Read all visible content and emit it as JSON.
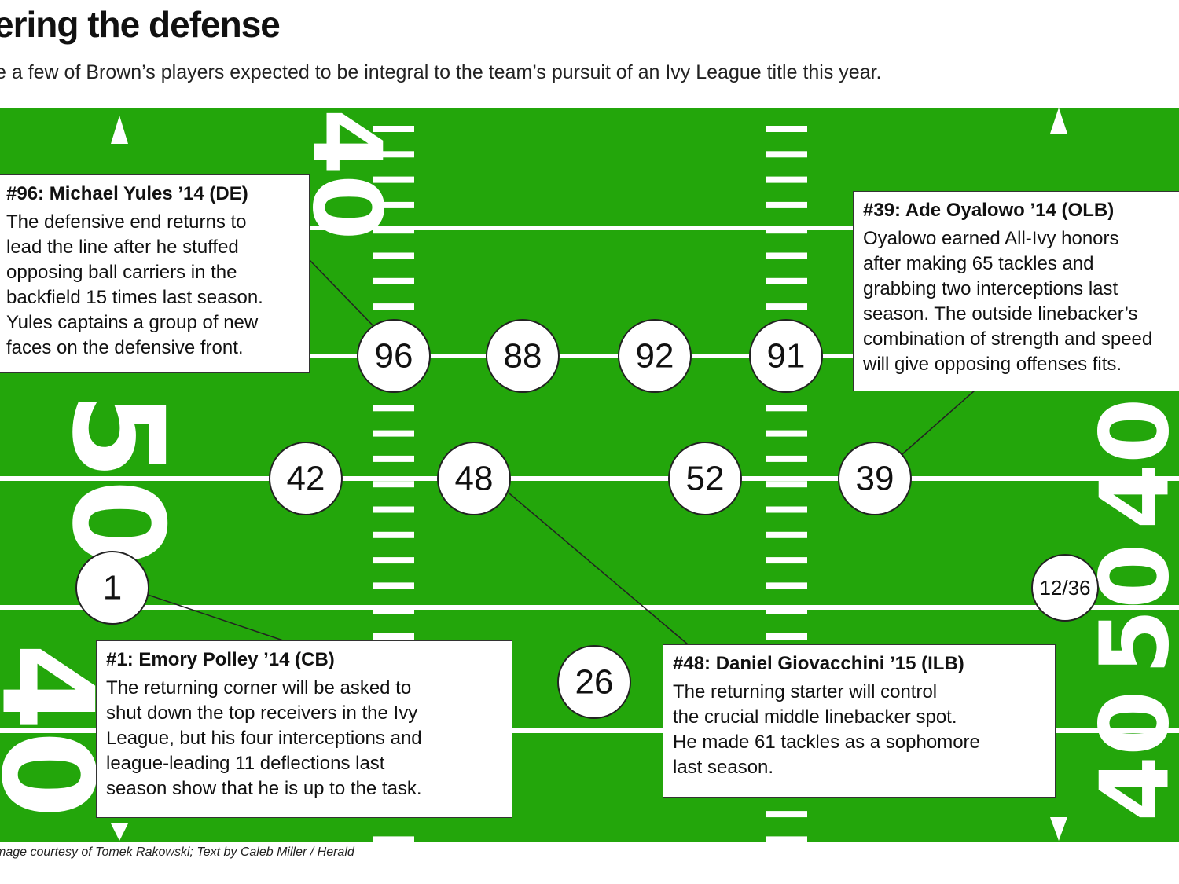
{
  "header": {
    "title": "ering the defense",
    "subtitle": "e a few of Brown’s players expected to be integral to the team’s pursuit of an Ivy League title this year."
  },
  "colors": {
    "field": "#23a60b",
    "lines": "#ffffff",
    "box_border": "#333333"
  },
  "field_numbers": {
    "left_mid": "50",
    "left_bottom": "40",
    "left_top": "40",
    "right_mid": "50",
    "right_bottom": "40",
    "right_top": "40"
  },
  "players": [
    {
      "number": "96"
    },
    {
      "number": "88"
    },
    {
      "number": "92"
    },
    {
      "number": "91"
    },
    {
      "number": "42"
    },
    {
      "number": "48"
    },
    {
      "number": "52"
    },
    {
      "number": "39"
    },
    {
      "number": "1"
    },
    {
      "number": "26"
    },
    {
      "number": "12/36"
    }
  ],
  "callouts": {
    "yules": {
      "heading": "#96: Michael Yules ’14 (DE)",
      "body": "The defensive end returns to\nlead the line after he stuffed\nopposing ball carriers in the\nbackfield 15 times last season.\nYules captains a group of new\nfaces on the defensive front."
    },
    "oyalowo": {
      "heading": "#39: Ade Oyalowo ’14 (OLB)",
      "body": "Oyalowo earned All-Ivy honors\nafter making 65 tackles and\ngrabbing two interceptions last\nseason. The outside linebacker’s\ncombination of strength and speed\nwill give opposing offenses fits."
    },
    "polley": {
      "heading": "#1: Emory Polley ’14 (CB)",
      "body": "The returning corner will be asked to\nshut down the top receivers in the Ivy\nLeague, but his four interceptions and\nleague-leading 11 deflections last\nseason show that he is up to the task."
    },
    "giovacchini": {
      "heading": "#48: Daniel Giovacchini ’15 (ILB)",
      "body": "The returning starter will control\nthe crucial middle linebacker spot.\nHe made 61 tackles as a sophomore\nlast season."
    }
  },
  "credit": "mage courtesy of Tomek Rakowski; Text by Caleb Miller / Herald"
}
